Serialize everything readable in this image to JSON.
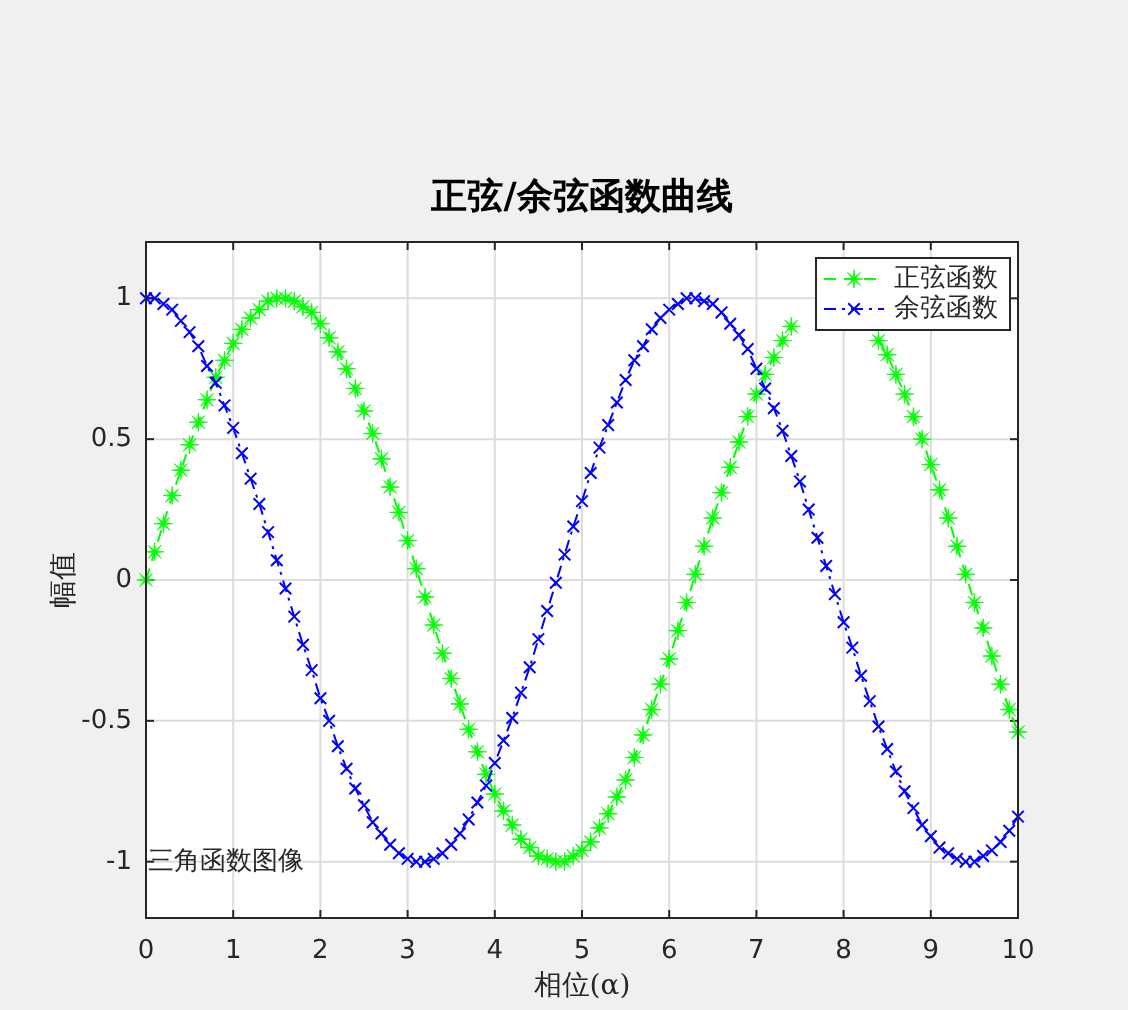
{
  "chart_data": {
    "type": "line",
    "title": "正弦/余弦函数曲线",
    "xlabel": "相位(α)",
    "ylabel": "幅值",
    "x": [
      0,
      0.1,
      0.2,
      0.3,
      0.4,
      0.5,
      0.6,
      0.7,
      0.8,
      0.9,
      1,
      1.1,
      1.2,
      1.3,
      1.4,
      1.5,
      1.6,
      1.7,
      1.8,
      1.9,
      2,
      2.1,
      2.2,
      2.3,
      2.4,
      2.5,
      2.6,
      2.7,
      2.8,
      2.9,
      3,
      3.1,
      3.2,
      3.3,
      3.4,
      3.5,
      3.6,
      3.7,
      3.8,
      3.9,
      4,
      4.1,
      4.2,
      4.3,
      4.4,
      4.5,
      4.6,
      4.7,
      4.8,
      4.9,
      5,
      5.1,
      5.2,
      5.3,
      5.4,
      5.5,
      5.6,
      5.7,
      5.8,
      5.9,
      6,
      6.1,
      6.2,
      6.3,
      6.4,
      6.5,
      6.6,
      6.7,
      6.8,
      6.9,
      7,
      7.1,
      7.2,
      7.3,
      7.4,
      7.5,
      7.6,
      7.7,
      7.8,
      7.9,
      8,
      8.1,
      8.2,
      8.3,
      8.4,
      8.5,
      8.6,
      8.7,
      8.8,
      8.9,
      9,
      9.1,
      9.2,
      9.3,
      9.4,
      9.5,
      9.6,
      9.7,
      9.8,
      9.9,
      10
    ],
    "series": [
      {
        "name": "正弦函数",
        "color": "#00ff00",
        "line_style": "dashed",
        "marker": "star",
        "values": [
          0,
          0.1,
          0.2,
          0.3,
          0.39,
          0.48,
          0.56,
          0.64,
          0.72,
          0.78,
          0.84,
          0.89,
          0.93,
          0.96,
          0.99,
          1,
          1,
          0.99,
          0.97,
          0.95,
          0.91,
          0.86,
          0.81,
          0.75,
          0.68,
          0.6,
          0.52,
          0.43,
          0.33,
          0.24,
          0.14,
          0.04,
          -0.06,
          -0.16,
          -0.26,
          -0.35,
          -0.44,
          -0.53,
          -0.61,
          -0.69,
          -0.76,
          -0.82,
          -0.87,
          -0.92,
          -0.95,
          -0.98,
          -0.99,
          -1,
          -1,
          -0.98,
          -0.96,
          -0.93,
          -0.88,
          -0.83,
          -0.77,
          -0.71,
          -0.63,
          -0.55,
          -0.46,
          -0.37,
          -0.28,
          -0.18,
          -0.08,
          0.02,
          0.12,
          0.22,
          0.31,
          0.4,
          0.49,
          0.58,
          0.66,
          0.73,
          0.79,
          0.85,
          0.9,
          null,
          null,
          null,
          null,
          null,
          null,
          null,
          null,
          null,
          0.85,
          0.8,
          0.73,
          0.66,
          0.58,
          0.5,
          0.41,
          0.32,
          0.22,
          0.12,
          0.02,
          -0.08,
          -0.17,
          -0.27,
          -0.37,
          -0.46,
          -0.54
        ]
      },
      {
        "name": "余弦函数",
        "color": "#0000ff",
        "line_style": "dashdot",
        "marker": "cross",
        "values": [
          1,
          1,
          0.98,
          0.96,
          0.92,
          0.88,
          0.83,
          0.76,
          0.7,
          0.62,
          0.54,
          0.45,
          0.36,
          0.27,
          0.17,
          0.07,
          -0.03,
          -0.13,
          -0.23,
          -0.32,
          -0.42,
          -0.5,
          -0.59,
          -0.67,
          -0.74,
          -0.8,
          -0.86,
          -0.9,
          -0.94,
          -0.97,
          -0.99,
          -1,
          -1,
          -0.99,
          -0.97,
          -0.94,
          -0.9,
          -0.85,
          -0.79,
          -0.73,
          -0.65,
          -0.57,
          -0.49,
          -0.4,
          -0.31,
          -0.21,
          -0.11,
          -0.01,
          0.09,
          0.19,
          0.28,
          0.38,
          0.47,
          0.55,
          0.63,
          0.71,
          0.78,
          0.83,
          0.89,
          0.93,
          0.96,
          0.98,
          1,
          1,
          0.99,
          0.98,
          0.95,
          0.91,
          0.87,
          0.82,
          0.75,
          0.68,
          0.61,
          0.53,
          0.44,
          0.35,
          0.25,
          0.15,
          0.05,
          -0.05,
          -0.15,
          -0.24,
          -0.34,
          -0.43,
          -0.52,
          -0.6,
          -0.68,
          -0.75,
          -0.81,
          -0.87,
          -0.91,
          -0.95,
          -0.97,
          -0.99,
          -1,
          -1,
          -0.98,
          -0.96,
          -0.93,
          -0.89,
          -0.84
        ]
      }
    ],
    "xlim": [
      0,
      10
    ],
    "ylim": [
      -1.2,
      1.2
    ],
    "xticks": [
      0,
      1,
      2,
      3,
      4,
      5,
      6,
      7,
      8,
      9,
      10
    ],
    "yticks": [
      -1,
      -0.5,
      0,
      0.5,
      1
    ],
    "grid": true,
    "legend": "top right",
    "annotations": [
      "三角函数图像"
    ]
  }
}
